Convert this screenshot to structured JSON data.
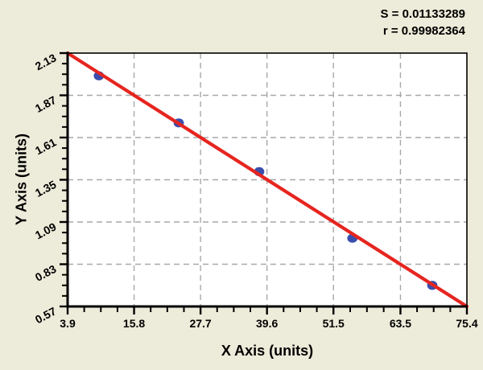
{
  "chart_data": {
    "type": "scatter",
    "title": "",
    "xlabel": "X Axis (units)",
    "ylabel": "Y Axis (units)",
    "xlim": [
      3.9,
      75.4
    ],
    "ylim": [
      0.57,
      2.13
    ],
    "x_ticks": [
      "3.9",
      "15.8",
      "27.7",
      "39.6",
      "51.5",
      "63.5",
      "75.4"
    ],
    "y_ticks": [
      "0.57",
      "0.83",
      "1.09",
      "1.35",
      "1.61",
      "1.87",
      "2.13"
    ],
    "minor_divisions": 4,
    "grid": true,
    "legend": "none",
    "series": [
      {
        "name": "data-points",
        "type": "scatter",
        "points": [
          [
            9.5,
            1.99
          ],
          [
            23.8,
            1.7
          ],
          [
            38.2,
            1.4
          ],
          [
            54.9,
            0.99
          ],
          [
            69.2,
            0.7
          ]
        ]
      },
      {
        "name": "linear-fit",
        "type": "line",
        "points": [
          [
            3.9,
            2.13
          ],
          [
            75.4,
            0.57
          ]
        ]
      }
    ],
    "annotations": [
      "S = 0.01133289",
      "r = 0.99982364"
    ],
    "colors": {
      "fit_line": "#e6251f",
      "point": "#3a4eae",
      "grid": "#a8a8a8",
      "frame": "#000000",
      "plot_bg": "#ffffff",
      "page_bg": "#edebd9",
      "text": "#000000"
    }
  }
}
